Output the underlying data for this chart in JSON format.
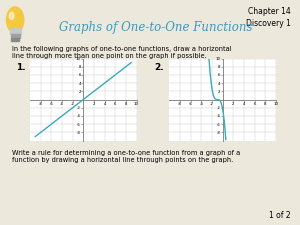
{
  "title": "Graphs of One-to-One Functions",
  "title_color": "#3a9abf",
  "chapter_text": "Chapter 14\nDiscovery 1",
  "intro_text": "In the following graphs of one-to-one functions, draw a horizontal\nline through more than one point on the graph if possible.",
  "bottom_text": "Write a rule for determining a one-to-one function from a graph of a\nfunction by drawing a horizontal line through points on the graph.",
  "page_text": "1 of 2",
  "background_color": "#ede8dc",
  "graph_bg": "#ffffff",
  "curve_color": "#3aabb8",
  "axis_color": "#777777",
  "grid_color": "#c8c8c8",
  "graph1_label": "1.",
  "graph2_label": "2.",
  "bulb_yellow": "#f5c842",
  "bulb_base": "#b0b0b0"
}
